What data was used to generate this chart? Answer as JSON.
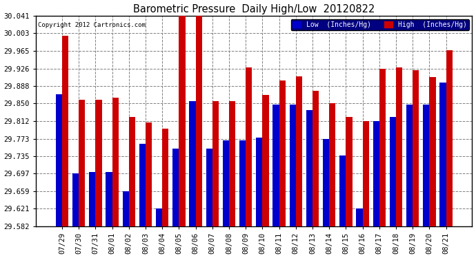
{
  "title": "Barometric Pressure  Daily High/Low  20120822",
  "copyright": "Copyright 2012 Cartronics.com",
  "legend_low": "Low  (Inches/Hg)",
  "legend_high": "High  (Inches/Hg)",
  "low_color": "#0000cc",
  "high_color": "#cc0000",
  "background_color": "#ffffff",
  "plot_background": "#ffffff",
  "yticks": [
    29.582,
    29.621,
    29.659,
    29.697,
    29.735,
    29.773,
    29.812,
    29.85,
    29.888,
    29.926,
    29.965,
    30.003,
    30.041
  ],
  "ylim_min": 29.582,
  "ylim_max": 30.041,
  "dates": [
    "07/29",
    "07/30",
    "07/31",
    "08/01",
    "08/02",
    "08/03",
    "08/04",
    "08/05",
    "08/06",
    "08/07",
    "08/08",
    "08/09",
    "08/10",
    "08/11",
    "08/12",
    "08/13",
    "08/14",
    "08/15",
    "08/16",
    "08/17",
    "08/18",
    "08/19",
    "08/20",
    "08/21"
  ],
  "low_values": [
    29.87,
    29.697,
    29.7,
    29.7,
    29.659,
    29.762,
    29.621,
    29.752,
    29.855,
    29.752,
    29.77,
    29.77,
    29.775,
    29.848,
    29.848,
    29.835,
    29.773,
    29.736,
    29.621,
    29.812,
    29.82,
    29.848,
    29.848,
    29.895
  ],
  "high_values": [
    29.997,
    29.858,
    29.858,
    29.862,
    29.82,
    29.808,
    29.795,
    30.041,
    30.041,
    29.855,
    29.855,
    29.928,
    29.868,
    29.9,
    29.909,
    29.878,
    29.851,
    29.82,
    29.812,
    29.925,
    29.928,
    29.922,
    29.908,
    29.966
  ]
}
